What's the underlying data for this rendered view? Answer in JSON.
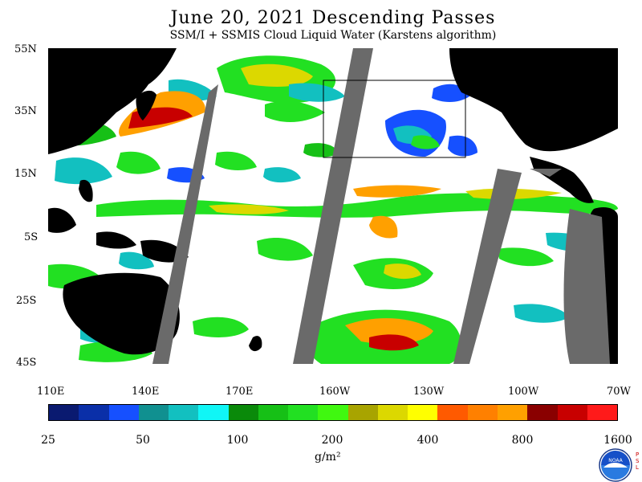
{
  "header": {
    "title": "June 20, 2021  Descending Passes",
    "subtitle": "SSM/I + SSMIS Cloud Liquid Water (Karstens algorithm)"
  },
  "axes": {
    "latitude_labels": [
      "55N",
      "35N",
      "15N",
      "5S",
      "25S",
      "45S"
    ],
    "longitude_labels": [
      "110E",
      "140E",
      "170E",
      "160W",
      "130W",
      "100W",
      "70W"
    ]
  },
  "colorbar": {
    "tick_labels": [
      "25",
      "50",
      "100",
      "200",
      "400",
      "800",
      "1600"
    ],
    "units": "g/m²",
    "colors": [
      "#0a1a70",
      "#0a2fa8",
      "#1650ff",
      "#109090",
      "#12c0c0",
      "#10f6f6",
      "#0a8a0a",
      "#16c016",
      "#22e022",
      "#40f810",
      "#a8a400",
      "#dcd800",
      "#ffff00",
      "#ff5a00",
      "#ff8000",
      "#ffa000",
      "#8a0000",
      "#c80000",
      "#ff1a1a"
    ]
  },
  "map": {
    "region": "Pacific Ocean",
    "land_color": "#000000",
    "no_data_color": "#6a6a6a",
    "clear_sky_color": "#ffffff",
    "box_outline_color": "#000000"
  },
  "logo": {
    "text": "NOAA",
    "side_text": "P S L"
  }
}
